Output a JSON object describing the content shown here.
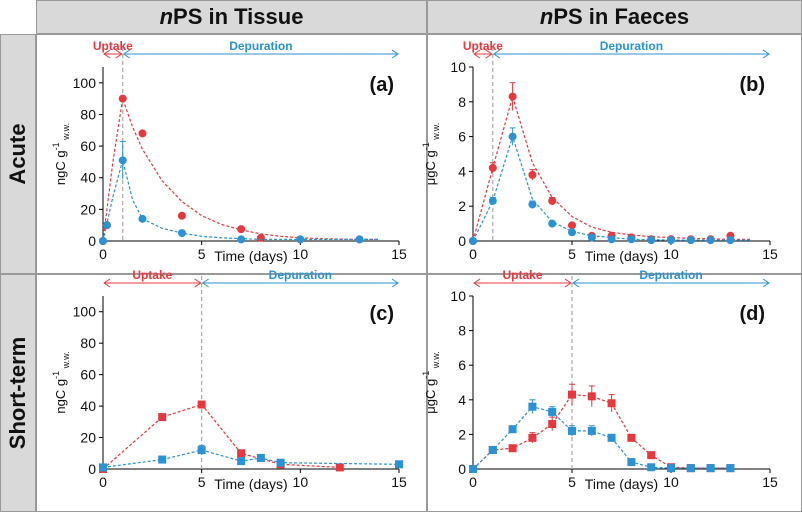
{
  "headers": {
    "col1_prefix": "n",
    "col1_rest": "PS in Tissue",
    "col2_prefix": "n",
    "col2_rest": "PS in Faeces"
  },
  "rows": {
    "row1": "Acute",
    "row2": "Short-term"
  },
  "colors": {
    "red": "#e8383d",
    "blue": "#2a93d5",
    "grid_dash": "#aaaaaa",
    "header_bg": "#d9d9d9"
  },
  "chart_data": [
    {
      "id": "a",
      "type": "scatter",
      "panel_label": "(a)",
      "ylabel_main": "ngC g",
      "ylabel_sup": "-1",
      "ylabel_sub": "w.w.",
      "xlabel": "Time (days)",
      "xlim": [
        0,
        15
      ],
      "xticks": [
        0,
        5,
        10,
        15
      ],
      "ylim": [
        0,
        110
      ],
      "yticks": [
        0,
        20,
        40,
        60,
        80,
        100
      ],
      "marker": "circle",
      "phase_line_x": 1,
      "uptake_label": "Uptake",
      "depuration_label": "Depuration",
      "series": [
        {
          "name": "red",
          "color": "#e8383d",
          "x": [
            0,
            0.2,
            1,
            2,
            4,
            7,
            8,
            10,
            13
          ],
          "y": [
            0,
            10,
            90,
            68,
            16,
            7.5,
            2,
            1,
            1
          ],
          "err": [
            0,
            0,
            0,
            0,
            0,
            0,
            0,
            0,
            0
          ],
          "fit_x": [
            0,
            0.5,
            1,
            1.5,
            2,
            3,
            4,
            5,
            6,
            7,
            8,
            9,
            10,
            11,
            12,
            13,
            14
          ],
          "fit_y": [
            0,
            50,
            90,
            72,
            58,
            38,
            25,
            16,
            10.5,
            7,
            4.5,
            3,
            2,
            1.5,
            1.2,
            1,
            1
          ]
        },
        {
          "name": "blue",
          "color": "#2a93d5",
          "x": [
            0,
            0.2,
            1,
            2,
            4,
            7,
            10,
            13
          ],
          "y": [
            0,
            10,
            51,
            14,
            5,
            1,
            1,
            1
          ],
          "err": [
            0,
            0,
            12,
            0,
            0,
            0,
            0,
            0
          ],
          "fit_x": [
            0,
            0.5,
            1,
            1.5,
            2,
            3,
            4,
            5,
            6,
            7,
            8,
            10,
            12,
            14
          ],
          "fit_y": [
            0,
            28,
            51,
            26,
            14,
            8,
            5,
            3,
            2,
            1.5,
            1,
            1,
            1,
            1
          ]
        }
      ]
    },
    {
      "id": "b",
      "type": "scatter",
      "panel_label": "(b)",
      "ylabel_main": "μgC g",
      "ylabel_sup": "-1",
      "ylabel_sub": "w.w.",
      "xlabel": "Time (days)",
      "xlim": [
        0,
        15
      ],
      "xticks": [
        0,
        5,
        10,
        15
      ],
      "ylim": [
        0,
        10
      ],
      "yticks": [
        0,
        2,
        4,
        6,
        8,
        10
      ],
      "marker": "circle",
      "phase_line_x": 1,
      "uptake_label": "Uptake",
      "depuration_label": "Depuration",
      "series": [
        {
          "name": "red",
          "color": "#e8383d",
          "x": [
            0,
            1,
            2,
            3,
            4,
            5,
            6,
            7,
            8,
            9,
            10,
            11,
            12,
            13
          ],
          "y": [
            0,
            4.2,
            8.3,
            3.8,
            2.3,
            0.9,
            0.3,
            0.3,
            0.2,
            0.1,
            0.1,
            0.1,
            0.1,
            0.3
          ],
          "err": [
            0,
            0.3,
            0.8,
            0.3,
            0.2,
            0,
            0,
            0,
            0,
            0,
            0,
            0,
            0,
            0
          ],
          "fit_x": [
            0,
            1,
            2,
            3,
            4,
            5,
            6,
            7,
            8,
            9,
            10,
            11,
            12,
            13,
            14
          ],
          "fit_y": [
            0,
            4.2,
            8.3,
            4.5,
            2.5,
            1.4,
            0.8,
            0.5,
            0.35,
            0.25,
            0.2,
            0.15,
            0.12,
            0.1,
            0.1
          ]
        },
        {
          "name": "blue",
          "color": "#2a93d5",
          "x": [
            0,
            1,
            2,
            3,
            4,
            5,
            6,
            7,
            8,
            9,
            10,
            11,
            12,
            13
          ],
          "y": [
            0,
            2.3,
            6.0,
            2.1,
            1.0,
            0.5,
            0.2,
            0.1,
            0.1,
            0.05,
            0.05,
            0.05,
            0.05,
            0.05
          ],
          "err": [
            0,
            0.2,
            0.5,
            0.2,
            0.1,
            0,
            0,
            0,
            0,
            0,
            0,
            0,
            0,
            0
          ],
          "fit_x": [
            0,
            1,
            2,
            3,
            4,
            5,
            6,
            7,
            8,
            10,
            12,
            14
          ],
          "fit_y": [
            0,
            2.3,
            6.0,
            2.4,
            1.1,
            0.55,
            0.3,
            0.2,
            0.1,
            0.05,
            0.05,
            0.05
          ]
        }
      ]
    },
    {
      "id": "c",
      "type": "line",
      "panel_label": "(c)",
      "ylabel_main": "ngC g",
      "ylabel_sup": "-1",
      "ylabel_sub": "w.w.",
      "xlabel": "Time (days)",
      "xlim": [
        0,
        15
      ],
      "xticks": [
        0,
        5,
        10,
        15
      ],
      "ylim": [
        0,
        110
      ],
      "yticks": [
        0,
        20,
        40,
        60,
        80,
        100
      ],
      "marker": "square",
      "phase_line_x": 5,
      "uptake_label": "Uptake",
      "depuration_label": "Depuration",
      "series": [
        {
          "name": "red",
          "color": "#e8383d",
          "x": [
            0,
            3,
            5,
            7,
            9,
            12
          ],
          "y": [
            0,
            33,
            41,
            10,
            3,
            1
          ],
          "err": [
            0,
            0,
            0,
            0,
            0,
            0
          ]
        },
        {
          "name": "blue",
          "color": "#2a93d5",
          "x": [
            0,
            3,
            5,
            7,
            8,
            9,
            15
          ],
          "y": [
            1,
            6,
            12,
            5,
            7,
            4,
            3
          ],
          "err": [
            0,
            2,
            3,
            0,
            0,
            0,
            0
          ]
        }
      ]
    },
    {
      "id": "d",
      "type": "line",
      "panel_label": "(d)",
      "ylabel_main": "μgC g",
      "ylabel_sup": "-1",
      "ylabel_sub": "w.w.",
      "xlabel": "Time (days)",
      "xlim": [
        0,
        15
      ],
      "xticks": [
        0,
        5,
        10,
        15
      ],
      "ylim": [
        0,
        10
      ],
      "yticks": [
        0,
        2,
        4,
        6,
        8,
        10
      ],
      "marker": "square",
      "phase_line_x": 5,
      "uptake_label": "Uptake",
      "depuration_label": "Depuration",
      "series": [
        {
          "name": "red",
          "color": "#e8383d",
          "x": [
            0,
            1,
            2,
            3,
            4,
            5,
            6,
            7,
            8,
            9,
            10,
            11,
            12,
            13
          ],
          "y": [
            0,
            1.1,
            1.2,
            1.8,
            2.6,
            4.3,
            4.2,
            3.8,
            1.8,
            0.8,
            0.1,
            0.05,
            0.05,
            0.05
          ],
          "err": [
            0,
            0,
            0,
            0.3,
            0.4,
            0.6,
            0.6,
            0.5,
            0,
            0,
            0,
            0,
            0,
            0
          ]
        },
        {
          "name": "blue",
          "color": "#2a93d5",
          "x": [
            0,
            1,
            2,
            3,
            4,
            5,
            6,
            7,
            8,
            9,
            10,
            11,
            12,
            13
          ],
          "y": [
            0,
            1.1,
            2.3,
            3.6,
            3.3,
            2.2,
            2.2,
            1.8,
            0.4,
            0.1,
            0.05,
            0.05,
            0.05,
            0.05
          ],
          "err": [
            0,
            0,
            0,
            0.4,
            0.3,
            0.3,
            0.3,
            0.2,
            0,
            0,
            0,
            0,
            0,
            0
          ]
        }
      ]
    }
  ]
}
